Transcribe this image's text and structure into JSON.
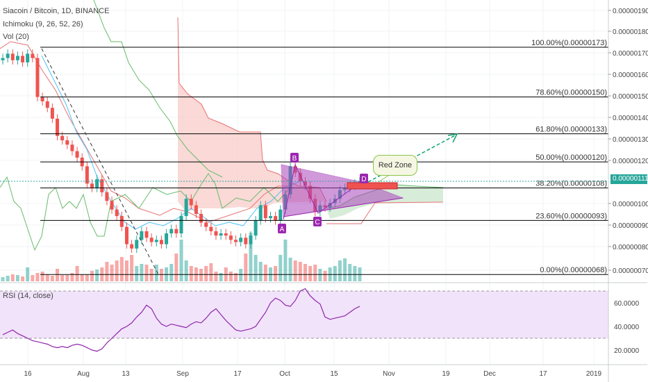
{
  "header": {
    "symbol": "Siacoin / Bitcoin, 1D, BINANCE",
    "indicator_1": "Ichimoku (9, 26, 52, 26)",
    "indicator_2": "Vol (20)",
    "rsi_label": "RSI (14, close)"
  },
  "price_axis": {
    "ticks": [
      "0.00000190",
      "0.00000180",
      "0.00000170",
      "0.00000160",
      "0.00000150",
      "0.00000140",
      "0.00000130",
      "0.00000120",
      "0.00000100",
      "0.00000090",
      "0.00000080",
      "0.00000070"
    ],
    "current_price": "0.00000111"
  },
  "rsi_axis": {
    "ticks": [
      "60.0000",
      "40.0000",
      "20.0000"
    ]
  },
  "time_axis": {
    "ticks": [
      "16",
      "Aug",
      "13",
      "Sep",
      "17",
      "Oct",
      "15",
      "Nov",
      "19",
      "Dec",
      "17",
      "2019"
    ]
  },
  "fib_levels": [
    {
      "label": "100.00%(0.00000173)",
      "price": 1.73e-06
    },
    {
      "label": "78.60%(0.00000150)",
      "price": 1.5e-06
    },
    {
      "label": "61.80%(0.00000133)",
      "price": 1.33e-06
    },
    {
      "label": "50.00%(0.00000120)",
      "price": 1.2e-06
    },
    {
      "label": "38.20%(0.00000108)",
      "price": 1.08e-06
    },
    {
      "label": "23.60%(0.00000093)",
      "price": 9.3e-07
    },
    {
      "label": "0.00%(0.00000068)",
      "price": 6.8e-07
    }
  ],
  "pattern_points": [
    "A",
    "B",
    "C",
    "D"
  ],
  "annotation": "Red Zone",
  "colors": {
    "up": "#26a69a",
    "down": "#ef5350",
    "fib": "#000000",
    "cloud_red": "#f8c9c6",
    "cloud_green": "#c8e6c9",
    "triangle": "#9c27b0",
    "arrow": "#10a070",
    "rsi": "#8e24aa",
    "rsi_band": "#f1e3fa"
  },
  "chart_data": {
    "type": "candlestick",
    "title": "Siacoin / Bitcoin, 1D, BINANCE",
    "x_range": [
      "2018-07-10",
      "2019-01-05"
    ],
    "ylim": [
      6.4e-07,
      1.97e-06
    ],
    "rsi_ylim": [
      12,
      76
    ],
    "close": [
      1.68e-06,
      1.7e-06,
      1.67e-06,
      1.69e-06,
      1.66e-06,
      1.7e-06,
      1.68e-06,
      1.5e-06,
      1.48e-06,
      1.45e-06,
      1.4e-06,
      1.32e-06,
      1.3e-06,
      1.28e-06,
      1.25e-06,
      1.22e-06,
      1.18e-06,
      1.1e-06,
      1.08e-06,
      1.12e-06,
      1.06e-06,
      1.02e-06,
      9.8e-07,
      9.5e-07,
      9e-07,
      8.2e-07,
      8e-07,
      8.4e-07,
      8.8e-07,
      8.5e-07,
      8.3e-07,
      8.4e-07,
      8.2e-07,
      8.7e-07,
      8.9e-07,
      8.7e-07,
      9.5e-07,
      1.03e-06,
      1e-06,
      9.6e-07,
      9.2e-07,
      9e-07,
      8.8e-07,
      8.6e-07,
      8.7e-07,
      8.6e-07,
      8.4e-07,
      8.3e-07,
      8.5e-07,
      8.2e-07,
      8.6e-07,
      9.3e-07,
      1e-06,
      9.4e-07,
      9.5e-07,
      9.3e-07,
      9.8e-07,
      1.05e-06,
      1.18e-06,
      1.15e-06,
      1.11e-06,
      1.09e-06,
      1.03e-06,
      9.7e-07,
      1e-06,
      9.9e-07,
      1.01e-06,
      1.03e-06,
      1.07e-06,
      1.08e-06,
      1.09e-06,
      1.1e-06,
      1.11e-06
    ],
    "rsi": [
      33,
      35,
      37,
      34,
      32,
      30,
      28,
      27,
      26,
      25,
      23,
      22,
      23,
      22,
      24,
      25,
      24,
      22,
      20,
      19,
      21,
      26,
      30,
      34,
      38,
      40,
      43,
      48,
      52,
      58,
      55,
      47,
      42,
      40,
      42,
      41,
      40,
      39,
      42,
      44,
      43,
      47,
      52,
      55,
      50,
      45,
      41,
      37,
      36,
      37,
      38,
      40,
      46,
      52,
      60,
      64,
      62,
      58,
      57,
      62,
      70,
      72,
      66,
      62,
      59,
      48,
      46,
      47,
      48,
      49,
      52,
      55,
      57
    ]
  }
}
